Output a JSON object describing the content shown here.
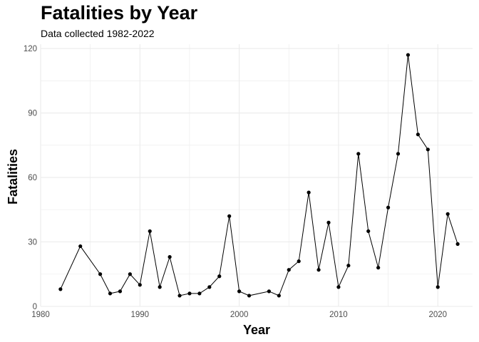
{
  "chart_data": {
    "type": "line",
    "title": "Fatalities by Year",
    "subtitle": "Data collected 1982-2022",
    "xlabel": "Year",
    "ylabel": "Fatalities",
    "xlim": [
      1980,
      2023.5
    ],
    "ylim": [
      0,
      122
    ],
    "x_ticks": [
      1980,
      1990,
      2000,
      2010,
      2020
    ],
    "y_ticks": [
      0,
      30,
      60,
      90,
      120
    ],
    "grid": true,
    "legend": "none",
    "line_color": "#000000",
    "point_color": "#000000",
    "grid_color": "#ebebeb",
    "series": [
      {
        "x": [
          1982,
          1984,
          1986,
          1987,
          1988,
          1989,
          1990,
          1991,
          1992,
          1993,
          1994,
          1995,
          1996,
          1997,
          1998,
          1999,
          2000,
          2001,
          2003,
          2004,
          2005,
          2006,
          2007,
          2008,
          2009,
          2010,
          2011,
          2012,
          2013,
          2014,
          2015,
          2016,
          2017,
          2018,
          2019,
          2020,
          2021,
          2022
        ],
        "y": [
          8,
          28,
          15,
          6,
          7,
          15,
          10,
          35,
          9,
          23,
          5,
          6,
          6,
          9,
          14,
          42,
          7,
          5,
          7,
          5,
          17,
          21,
          53,
          17,
          39,
          9,
          19,
          71,
          35,
          18,
          46,
          71,
          117,
          80,
          73,
          9,
          43,
          29
        ]
      }
    ]
  }
}
